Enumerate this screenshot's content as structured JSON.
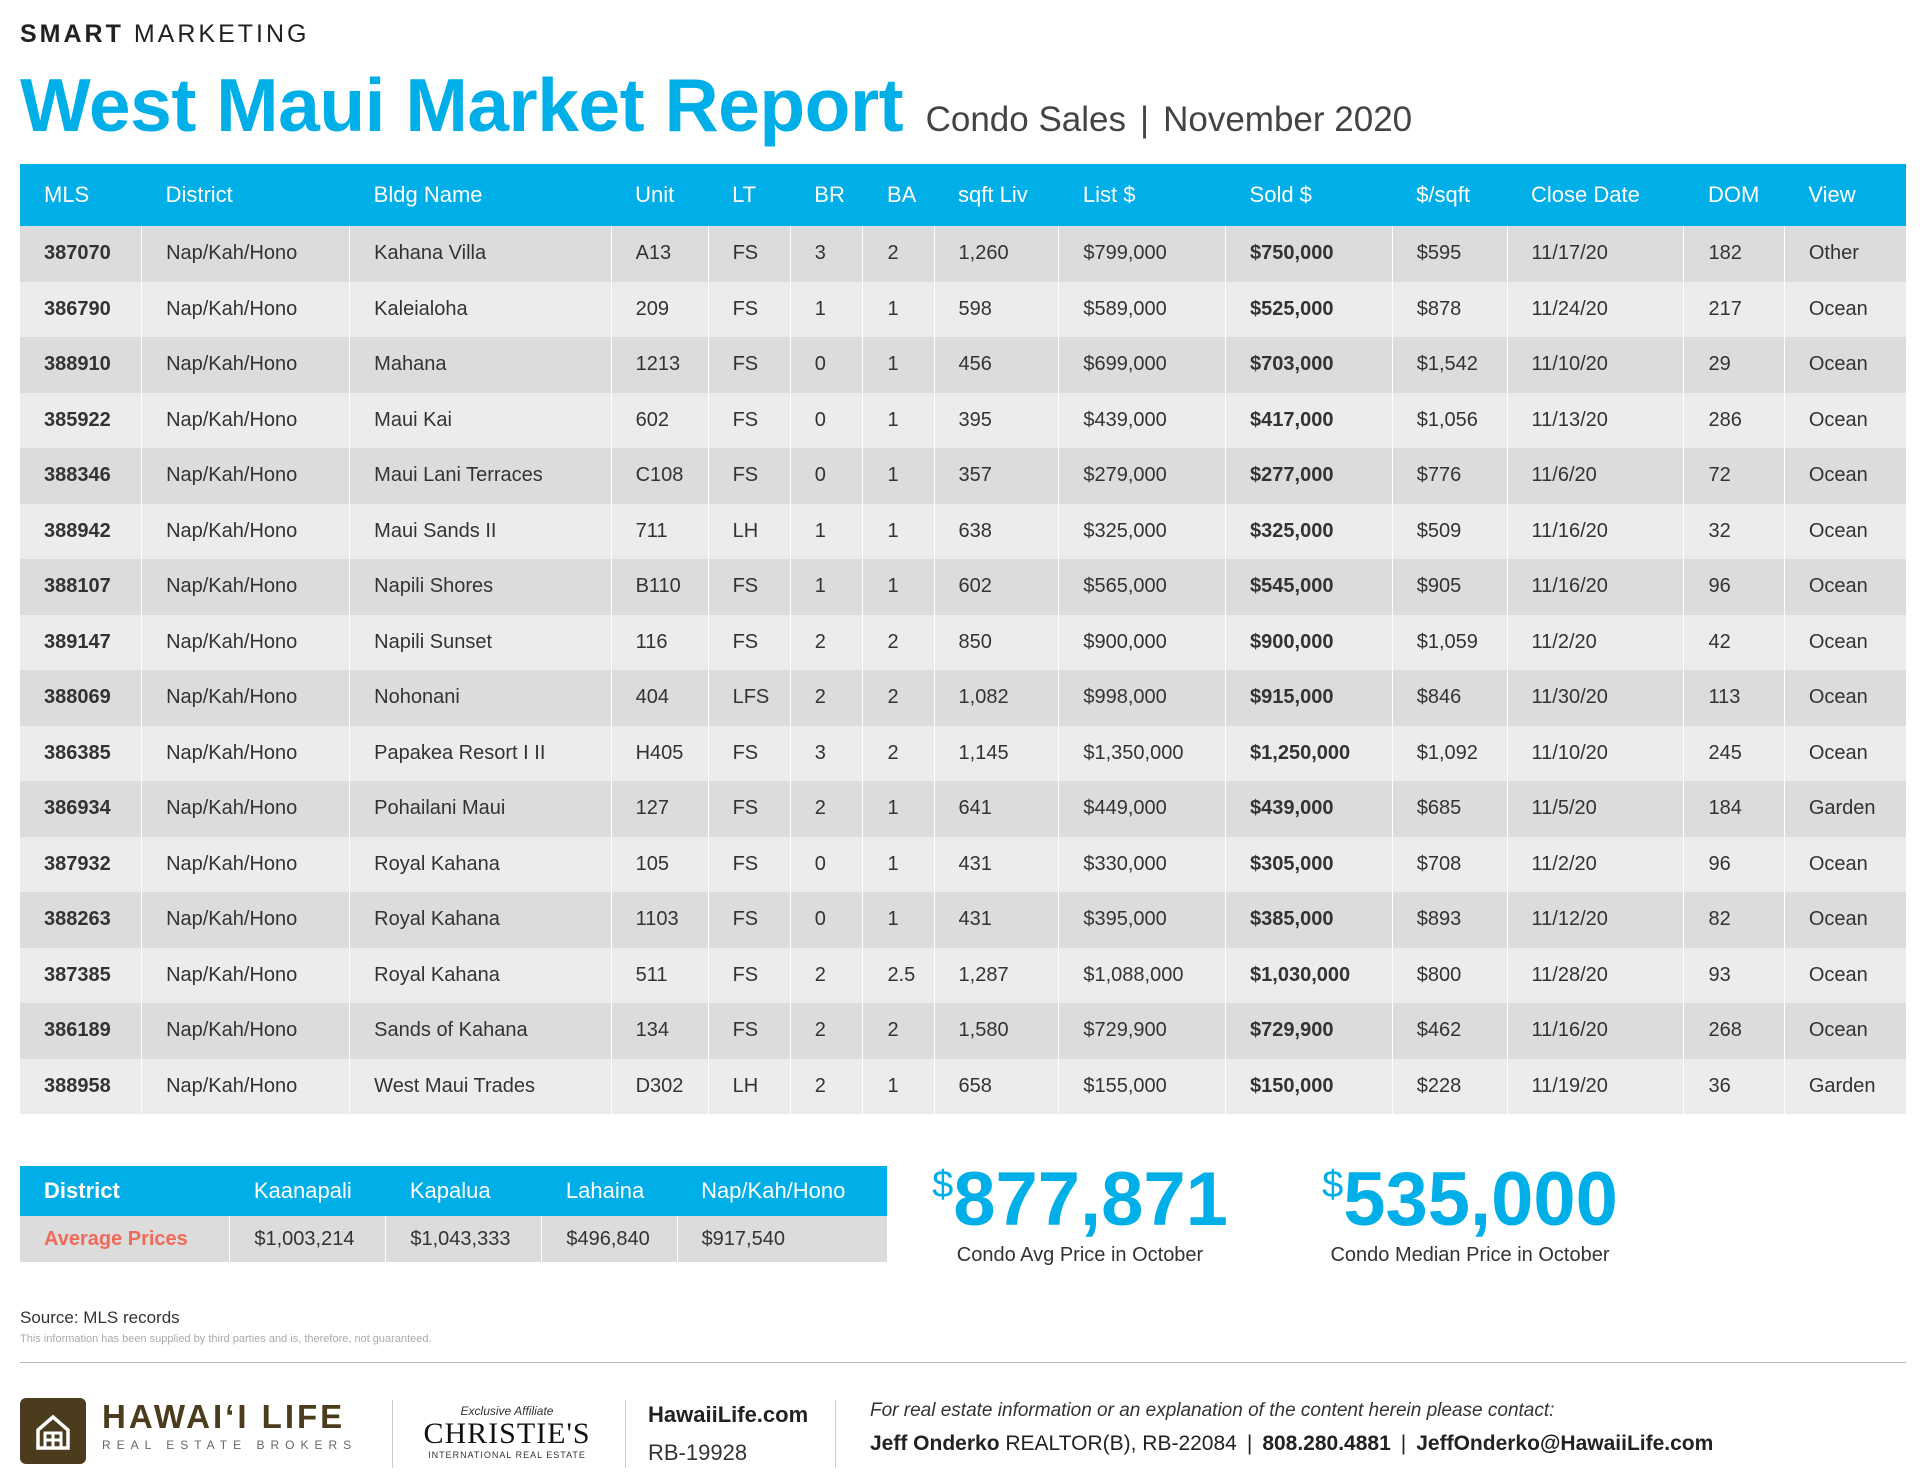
{
  "header": {
    "smart_bold": "SMART",
    "smart_rest": " MARKETING",
    "title": "West Maui Market Report",
    "subtitle_left": "Condo Sales",
    "subtitle_sep": "|",
    "subtitle_right": "November 2020"
  },
  "sales_table": {
    "columns": [
      "MLS",
      "District",
      "Bldg Name",
      "Unit",
      "LT",
      "BR",
      "BA",
      "sqft Liv",
      "List $",
      "Sold $",
      "$/sqft",
      "Close Date",
      "DOM",
      "View"
    ],
    "rows": [
      [
        "387070",
        "Nap/Kah/Hono",
        "Kahana Villa",
        "A13",
        "FS",
        "3",
        "2",
        "1,260",
        "$799,000",
        "$750,000",
        "$595",
        "11/17/20",
        "182",
        "Other"
      ],
      [
        "386790",
        "Nap/Kah/Hono",
        "Kaleialoha",
        "209",
        "FS",
        "1",
        "1",
        "598",
        "$589,000",
        "$525,000",
        "$878",
        "11/24/20",
        "217",
        "Ocean"
      ],
      [
        "388910",
        "Nap/Kah/Hono",
        "Mahana",
        "1213",
        "FS",
        "0",
        "1",
        "456",
        "$699,000",
        "$703,000",
        "$1,542",
        "11/10/20",
        "29",
        "Ocean"
      ],
      [
        "385922",
        "Nap/Kah/Hono",
        "Maui Kai",
        "602",
        "FS",
        "0",
        "1",
        "395",
        "$439,000",
        "$417,000",
        "$1,056",
        "11/13/20",
        "286",
        "Ocean"
      ],
      [
        "388346",
        "Nap/Kah/Hono",
        "Maui Lani Terraces",
        "C108",
        "FS",
        "0",
        "1",
        "357",
        "$279,000",
        "$277,000",
        "$776",
        "11/6/20",
        "72",
        "Ocean"
      ],
      [
        "388942",
        "Nap/Kah/Hono",
        "Maui Sands II",
        "711",
        "LH",
        "1",
        "1",
        "638",
        "$325,000",
        "$325,000",
        "$509",
        "11/16/20",
        "32",
        "Ocean"
      ],
      [
        "388107",
        "Nap/Kah/Hono",
        "Napili Shores",
        "B110",
        "FS",
        "1",
        "1",
        "602",
        "$565,000",
        "$545,000",
        "$905",
        "11/16/20",
        "96",
        "Ocean"
      ],
      [
        "389147",
        "Nap/Kah/Hono",
        "Napili Sunset",
        "116",
        "FS",
        "2",
        "2",
        "850",
        "$900,000",
        "$900,000",
        "$1,059",
        "11/2/20",
        "42",
        "Ocean"
      ],
      [
        "388069",
        "Nap/Kah/Hono",
        "Nohonani",
        "404",
        "LFS",
        "2",
        "2",
        "1,082",
        "$998,000",
        "$915,000",
        "$846",
        "11/30/20",
        "113",
        "Ocean"
      ],
      [
        "386385",
        "Nap/Kah/Hono",
        "Papakea Resort I II",
        "H405",
        "FS",
        "3",
        "2",
        "1,145",
        "$1,350,000",
        "$1,250,000",
        "$1,092",
        "11/10/20",
        "245",
        "Ocean"
      ],
      [
        "386934",
        "Nap/Kah/Hono",
        "Pohailani Maui",
        "127",
        "FS",
        "2",
        "1",
        "641",
        "$449,000",
        "$439,000",
        "$685",
        "11/5/20",
        "184",
        "Garden"
      ],
      [
        "387932",
        "Nap/Kah/Hono",
        "Royal Kahana",
        "105",
        "FS",
        "0",
        "1",
        "431",
        "$330,000",
        "$305,000",
        "$708",
        "11/2/20",
        "96",
        "Ocean"
      ],
      [
        "388263",
        "Nap/Kah/Hono",
        "Royal Kahana",
        "1103",
        "FS",
        "0",
        "1",
        "431",
        "$395,000",
        "$385,000",
        "$893",
        "11/12/20",
        "82",
        "Ocean"
      ],
      [
        "387385",
        "Nap/Kah/Hono",
        "Royal Kahana",
        "511",
        "FS",
        "2",
        "2.5",
        "1,287",
        "$1,088,000",
        "$1,030,000",
        "$800",
        "11/28/20",
        "93",
        "Ocean"
      ],
      [
        "386189",
        "Nap/Kah/Hono",
        "Sands of Kahana",
        "134",
        "FS",
        "2",
        "2",
        "1,580",
        "$729,900",
        "$729,900",
        "$462",
        "11/16/20",
        "268",
        "Ocean"
      ],
      [
        "388958",
        "Nap/Kah/Hono",
        "West Maui Trades",
        "D302",
        "LH",
        "2",
        "1",
        "658",
        "$155,000",
        "$150,000",
        "$228",
        "11/19/20",
        "36",
        "Garden"
      ]
    ]
  },
  "district_table": {
    "header": [
      "District",
      "Kaanapali",
      "Kapalua",
      "Lahaina",
      "Nap/Kah/Hono"
    ],
    "row": [
      "Average Prices",
      "$1,003,214",
      "$1,043,333",
      "$496,840",
      "$917,540"
    ]
  },
  "stats": {
    "avg_currency": "$",
    "avg_value": "877,871",
    "avg_label": "Condo Avg Price in October",
    "median_currency": "$",
    "median_value": "535,000",
    "median_label": "Condo Median Price in October"
  },
  "source": "Source: MLS records",
  "disclaimer": "This information has been supplied by third parties and is, therefore, not guaranteed.",
  "footer": {
    "brand_name": "HAWAI‘I LIFE",
    "brand_sub": "REAL ESTATE BROKERS",
    "affiliate": "Exclusive Affiliate",
    "christies": "CHRISTIE'S",
    "christies_sub": "INTERNATIONAL REAL ESTATE",
    "site": "HawaiiLife.com",
    "rb": "RB-19928",
    "contact_intro": "For real estate information or an explanation of the content herein please contact:",
    "agent_name": "Jeff Onderko",
    "agent_title": " REALTOR(B), RB-22084",
    "sep": "|",
    "phone": "808.280.4881",
    "email": "JeffOnderko@HawaiiLife.com"
  },
  "colors": {
    "accent": "#00aee8",
    "mls": "#ef6a5a",
    "brand": "#4a3c1c"
  }
}
